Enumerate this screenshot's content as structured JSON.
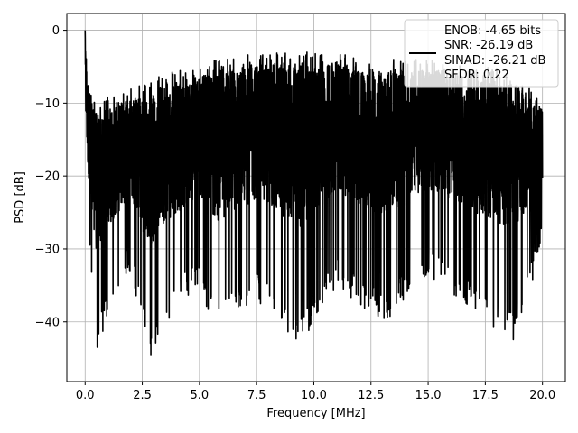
{
  "chart_data": {
    "type": "line",
    "title": "",
    "xlabel": "Frequency [MHz]",
    "ylabel": "PSD [dB]",
    "xlim": [
      -0.8,
      21.0
    ],
    "ylim": [
      -48.2,
      2.3
    ],
    "grid": true,
    "legend_position": "top-right",
    "x_ticks": [
      0.0,
      2.5,
      5.0,
      7.5,
      10.0,
      12.5,
      15.0,
      17.5,
      20.0
    ],
    "x_tick_labels": [
      "0.0",
      "2.5",
      "5.0",
      "7.5",
      "10.0",
      "12.5",
      "15.0",
      "17.5",
      "20.0"
    ],
    "y_ticks": [
      0,
      -10,
      -20,
      -30,
      -40
    ],
    "y_tick_labels": [
      "0",
      "−10",
      "−20",
      "−30",
      "−40"
    ],
    "legend_lines": [
      "ENOB: -4.65 bits",
      "SNR: -26.19 dB",
      "SINAD: -26.21 dB",
      "SFDR: 0.22"
    ],
    "series": [
      {
        "color": "#000000",
        "x_range": [
          0.0,
          20.0
        ],
        "envelope": [
          {
            "x": 0.0,
            "low": -18,
            "high": 0
          },
          {
            "x": 0.1,
            "low": -28,
            "high": -5
          },
          {
            "x": 0.3,
            "low": -35,
            "high": -9
          },
          {
            "x": 0.5,
            "low": -45.5,
            "high": -10
          },
          {
            "x": 1.0,
            "low": -39,
            "high": -9
          },
          {
            "x": 2.0,
            "low": -33,
            "high": -8
          },
          {
            "x": 2.8,
            "low": -45.5,
            "high": -7
          },
          {
            "x": 3.4,
            "low": -40.5,
            "high": -6
          },
          {
            "x": 5.0,
            "low": -35,
            "high": -5
          },
          {
            "x": 5.7,
            "low": -41.5,
            "high": -4
          },
          {
            "x": 7.5,
            "low": -37,
            "high": -3
          },
          {
            "x": 9.4,
            "low": -43.3,
            "high": -3
          },
          {
            "x": 11.0,
            "low": -35,
            "high": -3
          },
          {
            "x": 13.0,
            "low": -40.3,
            "high": -4
          },
          {
            "x": 15.0,
            "low": -34,
            "high": -4
          },
          {
            "x": 17.3,
            "low": -39.5,
            "high": -5
          },
          {
            "x": 18.7,
            "low": -42.8,
            "high": -5
          },
          {
            "x": 20.0,
            "low": -30,
            "high": -10
          }
        ],
        "noise_seed": 12345
      }
    ]
  }
}
